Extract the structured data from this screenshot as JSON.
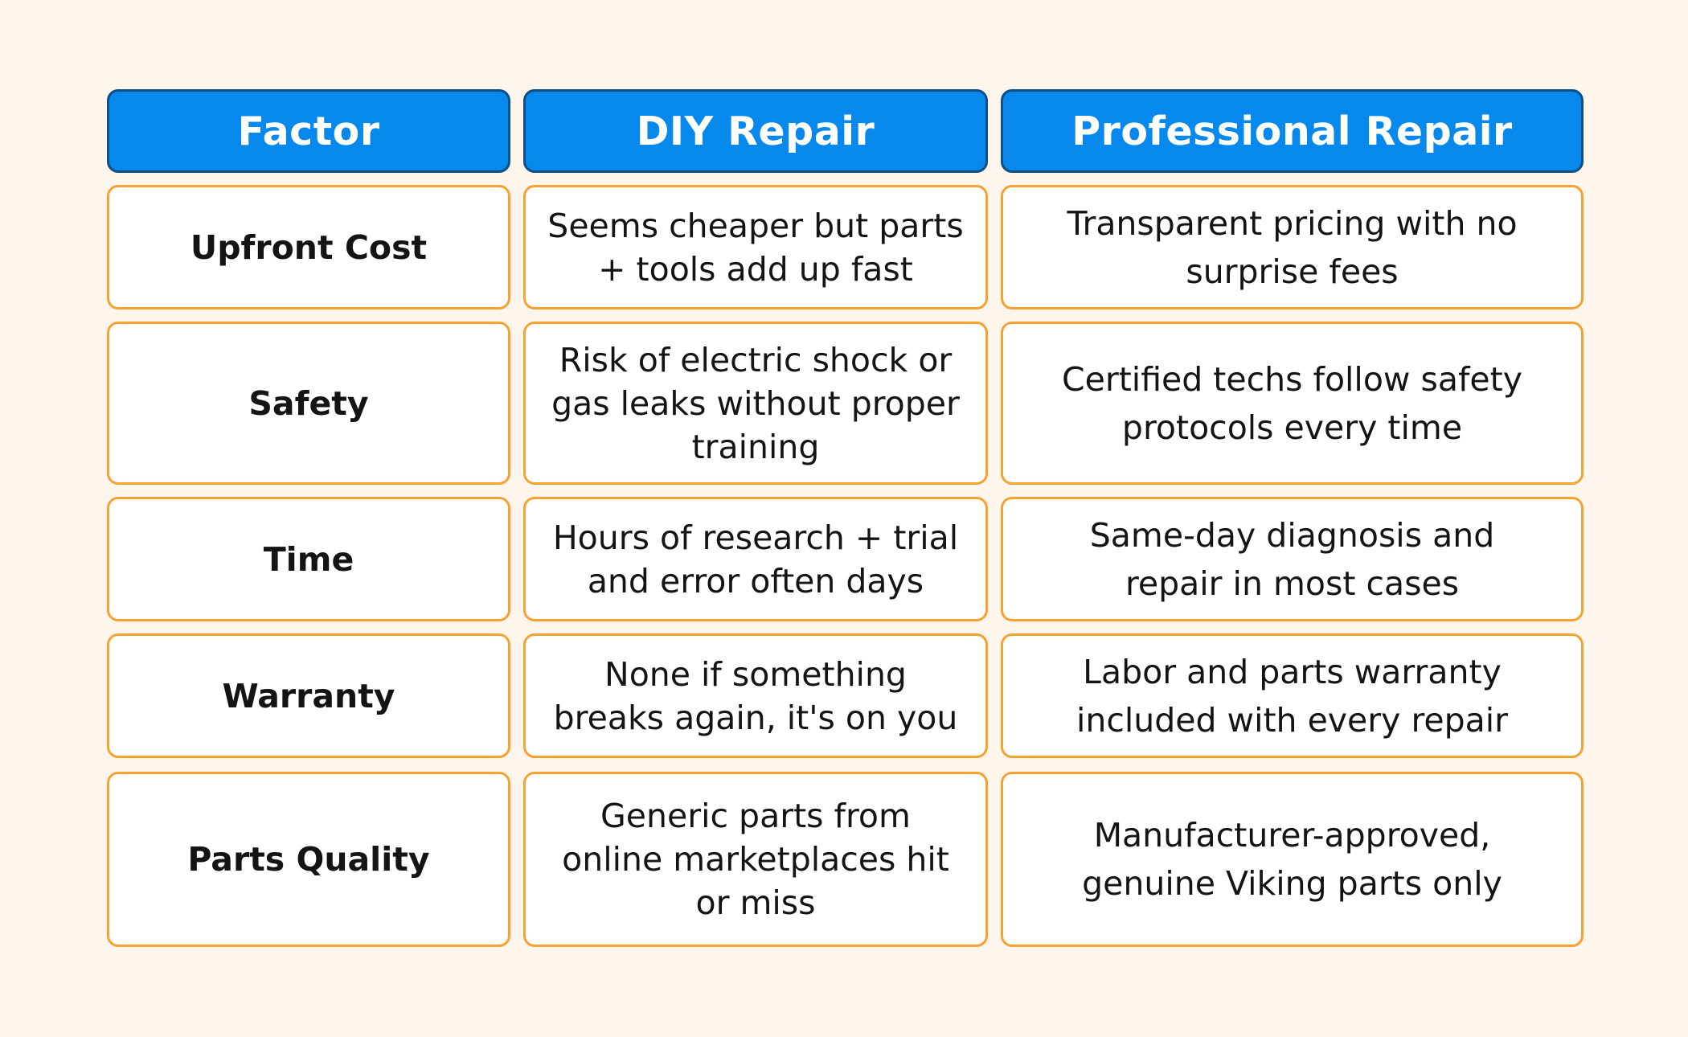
{
  "headers": {
    "factor": "Factor",
    "diy": "DIY Repair",
    "professional": "Professional Repair"
  },
  "colors": {
    "background": "#fef5ec",
    "header_fill": "#0788ec",
    "header_border": "#0b4f86",
    "cell_border": "#f7a130"
  },
  "rows": [
    {
      "factor": "Upfront Cost",
      "diy": "Seems cheaper but parts + tools add up fast",
      "professional": "Transparent pricing with no surprise fees"
    },
    {
      "factor": "Safety",
      "diy": "Risk of electric shock or gas leaks without proper training",
      "professional": "Certified techs follow safety protocols every time"
    },
    {
      "factor": "Time",
      "diy": "Hours of research + trial and error often days",
      "professional": "Same-day diagnosis and repair in most cases"
    },
    {
      "factor": "Warranty",
      "diy": "None if something breaks again, it's on you",
      "professional": "Labor and parts warranty included with every repair"
    },
    {
      "factor": "Parts Quality",
      "diy": "Generic parts from online marketplaces hit or miss",
      "professional": "Manufacturer-approved, genuine Viking parts only"
    }
  ]
}
